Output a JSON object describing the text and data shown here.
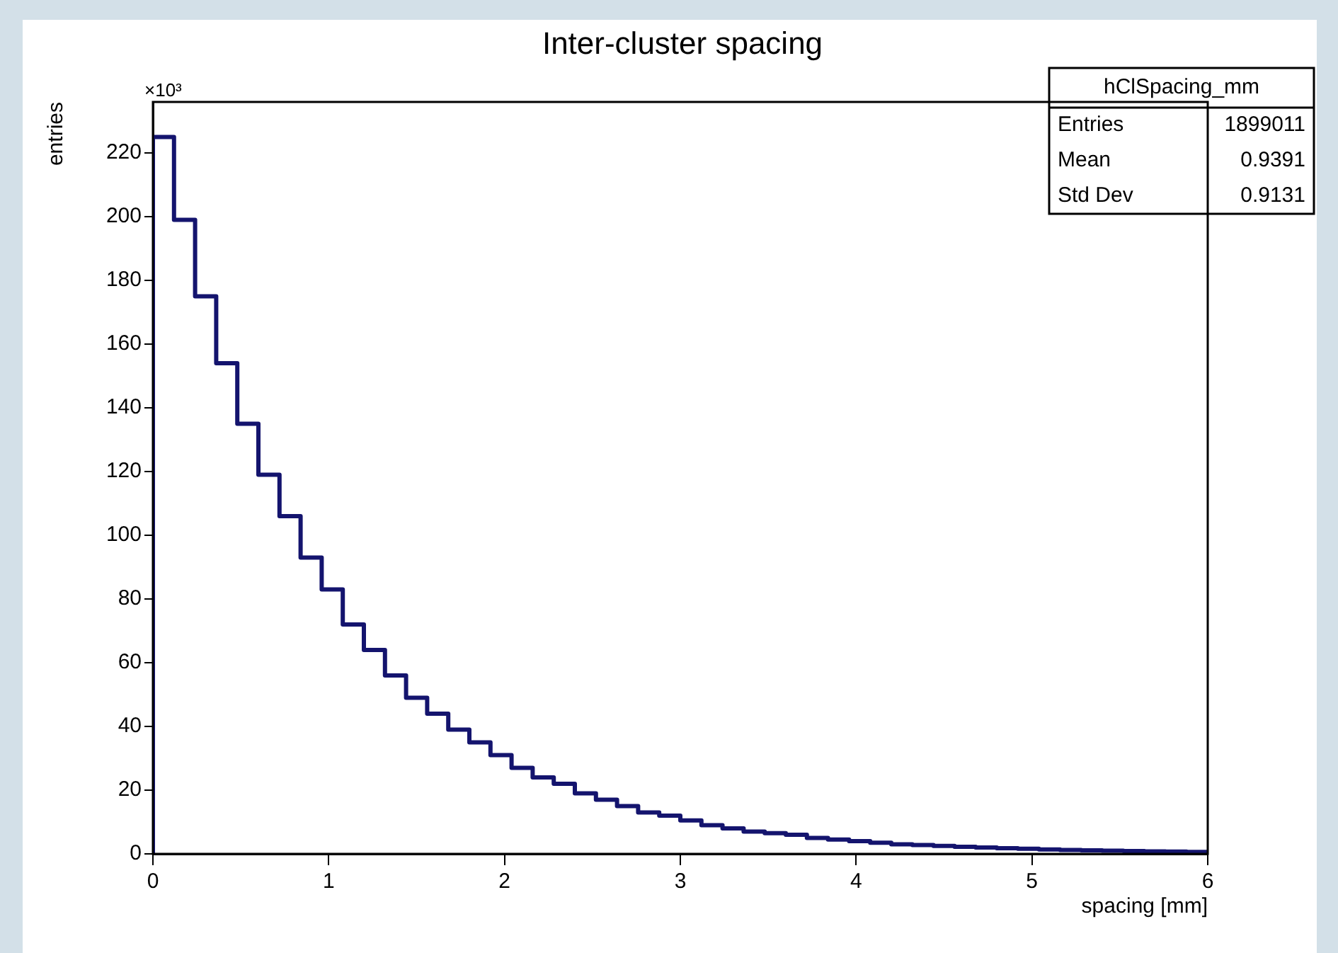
{
  "chart_data": {
    "type": "histogram",
    "title": "Inter-cluster spacing",
    "xlabel": "spacing [mm]",
    "ylabel": "entries",
    "bins": [
      0,
      0.12,
      0.24,
      0.36,
      0.48,
      0.6,
      0.72,
      0.84,
      0.96,
      1.08,
      1.2,
      1.32,
      1.44,
      1.56,
      1.68,
      1.8,
      1.92,
      2.04,
      2.16,
      2.28,
      2.4,
      2.52,
      2.64,
      2.76,
      2.88,
      3,
      3.12,
      3.24,
      3.36,
      3.48,
      3.6,
      3.72,
      3.84,
      3.96,
      4.08,
      4.2,
      4.32,
      4.44,
      4.56,
      4.68,
      4.8,
      4.92,
      5.04,
      5.16,
      5.28,
      5.4,
      5.52,
      5.64,
      5.76,
      5.88,
      6
    ],
    "values": [
      225,
      199,
      175,
      154,
      135,
      119,
      106,
      93,
      83,
      72,
      64,
      56,
      49,
      44,
      39,
      35,
      31,
      27,
      24,
      22,
      19,
      17,
      15,
      13,
      12,
      10.5,
      9,
      8,
      7,
      6.5,
      6,
      5,
      4.5,
      4,
      3.5,
      3,
      2.8,
      2.5,
      2.2,
      2,
      1.8,
      1.6,
      1.4,
      1.2,
      1.1,
      1,
      0.9,
      0.8,
      0.7,
      0.6
    ],
    "color": "#14146e",
    "xlim": [
      0,
      6
    ],
    "xticks": [
      0,
      1,
      2,
      3,
      4,
      5,
      6
    ],
    "ylim": [
      0,
      236
    ],
    "yticks": [
      0,
      20,
      40,
      60,
      80,
      100,
      120,
      140,
      160,
      180,
      200,
      220
    ],
    "grid": false,
    "legend": false,
    "annotations": [
      "×10³",
      "hClSpacing_mm",
      "Entries",
      "1899011",
      "Mean",
      "0.9391",
      "Std Dev",
      "0.9131"
    ]
  }
}
